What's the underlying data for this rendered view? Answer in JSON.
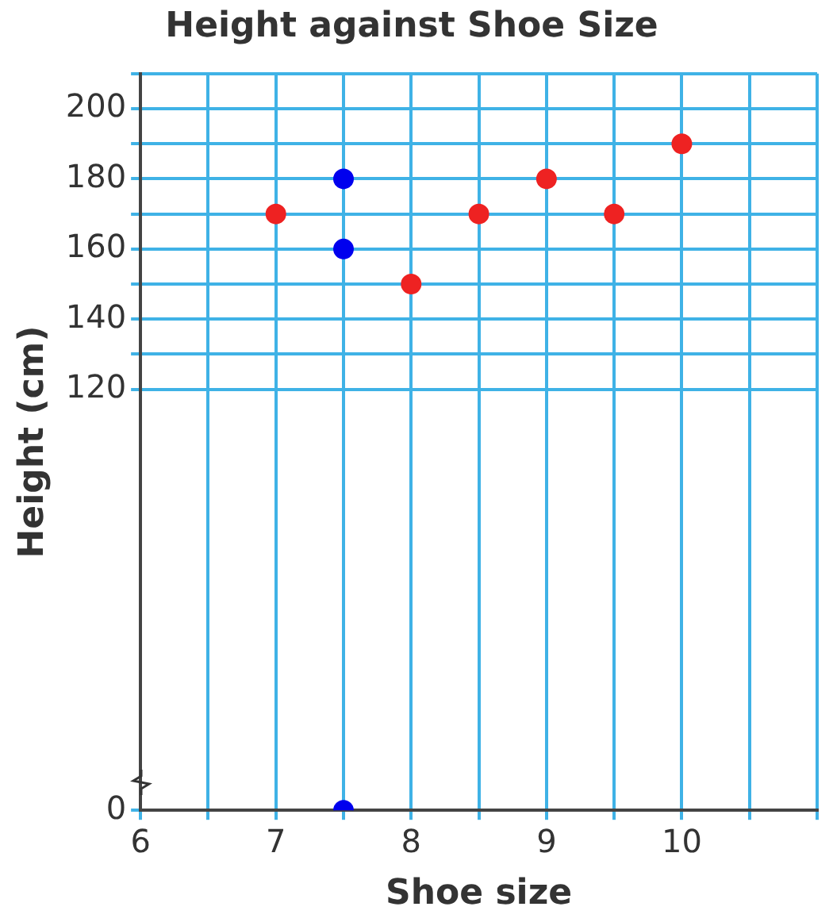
{
  "chart_data": {
    "type": "scatter",
    "title": "Height against Shoe Size",
    "xlabel": "Shoe size",
    "ylabel": "Height (cm)",
    "xlim": [
      6,
      11
    ],
    "xticks": [
      6,
      {
        "value": 6.5,
        "label": null
      },
      7,
      {
        "value": 7.5,
        "label": null
      },
      8,
      {
        "value": 8.5,
        "label": null
      },
      9,
      {
        "value": 9.5,
        "label": null
      },
      10,
      {
        "value": 10.5,
        "label": null
      },
      {
        "value": 11,
        "label": null
      }
    ],
    "ylim": [
      0,
      210
    ],
    "yticks": [
      0,
      120,
      {
        "value": 130,
        "label": null
      },
      140,
      {
        "value": 150,
        "label": null
      },
      160,
      {
        "value": 170,
        "label": null
      },
      180,
      {
        "value": 190,
        "label": null
      },
      200,
      {
        "value": 210,
        "label": null
      }
    ],
    "grid": true,
    "marker": "circle",
    "legend": false,
    "series": [
      {
        "color": "#ee2222",
        "x": [
          7,
          8,
          8.5,
          9,
          9.5,
          10
        ],
        "values": [
          170,
          150,
          170,
          180,
          170,
          190
        ]
      },
      {
        "color": "#0000ee",
        "x": [
          7.5,
          7.5,
          7.5
        ],
        "values": [
          180,
          160,
          0
        ]
      }
    ]
  }
}
